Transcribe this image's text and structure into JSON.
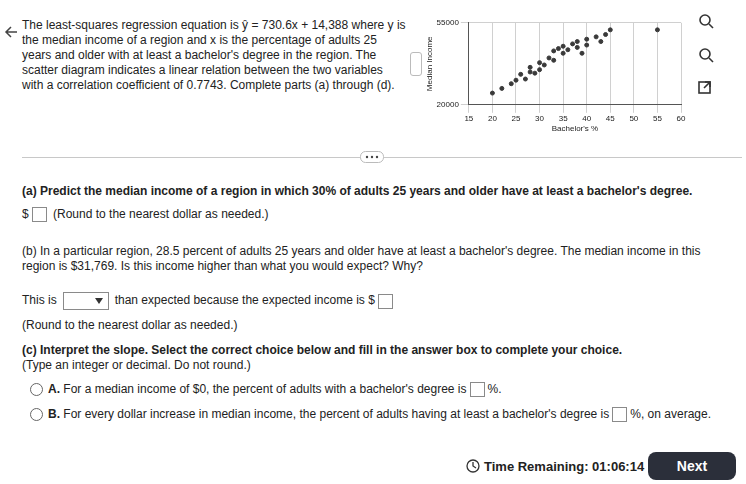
{
  "problem": {
    "text": "The least-squares regression equation is ŷ = 730.6x + 14,388 where y is the median income of a region and x is the percentage of adults 25 years and older with at least a bachelor's degree in the region. The scatter diagram indicates a linear relation between the two variables with a correlation coefficient of 0.7743. Complete parts (a) through (d)."
  },
  "chart_data": {
    "type": "scatter",
    "x_label": "Bachelor's %",
    "y_label": "Median Income",
    "x": [
      20,
      22,
      24,
      25,
      26,
      27,
      28,
      28,
      29,
      30,
      30,
      31,
      32,
      33,
      33,
      34,
      35,
      35,
      36,
      37,
      38,
      38,
      39,
      40,
      40,
      42,
      43,
      44,
      45,
      55
    ],
    "values": [
      25000,
      27000,
      29000,
      30500,
      33000,
      31000,
      34000,
      36000,
      33500,
      35000,
      38000,
      37000,
      40000,
      39000,
      43000,
      44000,
      42000,
      45000,
      43500,
      46000,
      44500,
      47000,
      42000,
      48000,
      45500,
      49000,
      47000,
      50000,
      52000,
      52000
    ],
    "color": "#3a3a3a",
    "marker": "circle",
    "xlim": [
      15,
      60
    ],
    "xticks": [
      15,
      20,
      25,
      30,
      35,
      40,
      45,
      50,
      55,
      60
    ],
    "ylim": [
      20000,
      55000
    ],
    "yticks": [
      20000,
      55000
    ],
    "grid": true
  },
  "part_a": {
    "question": "(a) Predict the median income of a region in which 30% of adults 25 years and older have at least a bachelor's degree.",
    "answer_prefix": "$",
    "hint": "(Round to the nearest dollar as needed.)"
  },
  "part_b": {
    "question": "(b) In a particular region, 28.5 percent of adults 25 years and older have at least a bachelor's degree. The median income in this region is $31,769. Is this income higher than what you would expect? Why?",
    "answer_before": "This is",
    "answer_middle": "than expected because the expected income is $",
    "hint": "(Round to the nearest dollar as needed.)"
  },
  "part_c": {
    "question": "(c) Interpret the slope. Select the correct choice below and fill in the answer box to complete your choice.",
    "hint": "(Type an integer or decimal. Do not round.)",
    "choices": [
      {
        "letter": "A.",
        "before": "For a median income of $0, the percent of adults with a bachelor's degree is",
        "after": "%."
      },
      {
        "letter": "B.",
        "before": "For every dollar increase in median income, the percent of adults having at least a bachelor's degree is",
        "after": "%, on average."
      }
    ]
  },
  "footer": {
    "timer_label": "Time Remaining:",
    "timer": "01:06:14",
    "button": "Next"
  }
}
